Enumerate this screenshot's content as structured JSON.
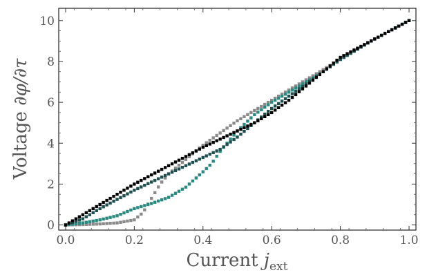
{
  "chart_data": {
    "type": "scatter",
    "title": "",
    "xlabel": "Current j_ext",
    "ylabel": "Voltage ∂φ/∂τ",
    "xlabel_parts": {
      "main": "Current ",
      "var": "j",
      "sub": "ext"
    },
    "ylabel_parts": {
      "main": "Voltage ",
      "expr": "∂φ/∂τ"
    },
    "xlim": [
      0.0,
      1.0
    ],
    "ylim": [
      0,
      10.5
    ],
    "xticks": [
      0.0,
      0.2,
      0.4,
      0.6,
      0.8,
      1.0
    ],
    "xtick_labels": [
      "0.0",
      "0.2",
      "0.4",
      "0.6",
      "0.8",
      "1.0"
    ],
    "yticks": [
      0,
      2,
      4,
      6,
      8,
      10
    ],
    "ytick_labels": [
      "0",
      "2",
      "4",
      "6",
      "8",
      "10"
    ],
    "grid": false,
    "legend": "none",
    "series": [
      {
        "color": "#000000",
        "x": [
          0.0,
          0.05,
          0.1,
          0.15,
          0.2,
          0.25,
          0.3,
          0.35,
          0.4,
          0.45,
          0.5,
          0.55,
          0.6,
          0.65,
          0.7,
          0.75,
          0.8,
          0.85,
          0.9,
          0.95,
          1.0
        ],
        "y": [
          0.0,
          0.5,
          1.0,
          1.5,
          2.0,
          2.45,
          2.9,
          3.35,
          3.8,
          4.2,
          4.6,
          5.0,
          5.5,
          6.1,
          6.8,
          7.5,
          8.2,
          8.65,
          9.1,
          9.55,
          10.0
        ]
      },
      {
        "color": "#1f4f4f",
        "x": [
          0.0,
          0.05,
          0.1,
          0.15,
          0.2,
          0.25,
          0.3,
          0.35,
          0.4,
          0.45,
          0.5,
          0.55,
          0.6,
          0.65,
          0.7,
          0.75,
          0.8,
          0.85,
          0.9,
          0.95,
          1.0
        ],
        "y": [
          0.0,
          0.3,
          0.8,
          1.25,
          1.7,
          2.1,
          2.5,
          2.9,
          3.3,
          3.7,
          4.3,
          5.0,
          5.7,
          6.3,
          6.9,
          7.5,
          8.1,
          8.6,
          9.1,
          9.55,
          10.0
        ]
      },
      {
        "color": "#2a8a80",
        "x": [
          0.0,
          0.05,
          0.1,
          0.15,
          0.2,
          0.25,
          0.3,
          0.35,
          0.4,
          0.425,
          0.45,
          0.5,
          0.55,
          0.6,
          0.65,
          0.7,
          0.75,
          0.8,
          0.85,
          0.9,
          0.95,
          1.0
        ],
        "y": [
          0.0,
          0.1,
          0.25,
          0.45,
          0.8,
          1.05,
          1.35,
          1.85,
          2.6,
          3.0,
          3.6,
          4.6,
          5.4,
          6.0,
          6.5,
          7.0,
          7.5,
          8.1,
          8.6,
          9.1,
          9.55,
          10.0
        ]
      },
      {
        "color": "#8a8a8a",
        "x": [
          0.0,
          0.05,
          0.1,
          0.15,
          0.2,
          0.225,
          0.25,
          0.275,
          0.3,
          0.35,
          0.4,
          0.45,
          0.5,
          0.55,
          0.6,
          0.65,
          0.7,
          0.75,
          0.8,
          0.85,
          0.9,
          0.95,
          1.0
        ],
        "y": [
          0.0,
          0.02,
          0.05,
          0.1,
          0.25,
          0.6,
          1.3,
          2.0,
          2.5,
          3.2,
          3.9,
          4.5,
          5.1,
          5.6,
          6.1,
          6.6,
          7.1,
          7.6,
          8.1,
          8.6,
          9.1,
          9.55,
          10.0
        ]
      }
    ]
  }
}
